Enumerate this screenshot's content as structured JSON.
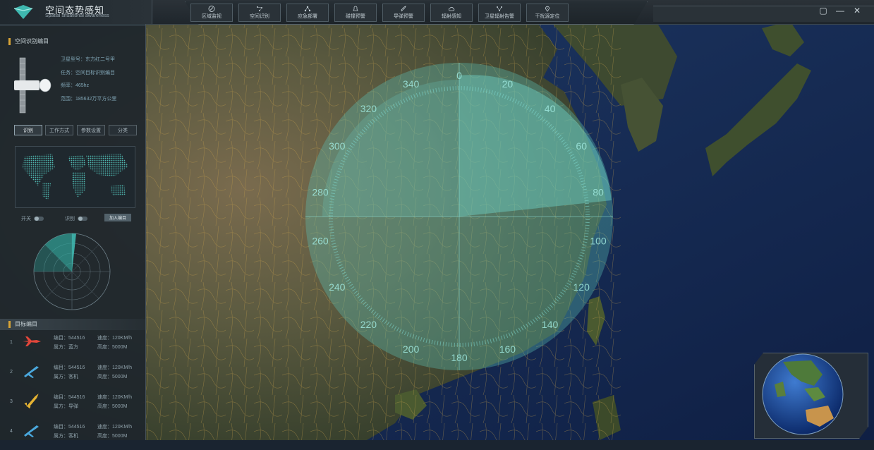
{
  "app": {
    "title": "空间态势感知",
    "subtitle": "Spatial situational awareness"
  },
  "nav": {
    "items": [
      {
        "label": "区域监视",
        "icon": "compass-icon"
      },
      {
        "label": "空间识别",
        "icon": "constellation-icon"
      },
      {
        "label": "应急部署",
        "icon": "network-icon"
      },
      {
        "label": "碰撞预警",
        "icon": "bell-icon"
      },
      {
        "label": "导弹预警",
        "icon": "rocket-icon"
      },
      {
        "label": "辐射感知",
        "icon": "cloud-icon"
      },
      {
        "label": "卫星辐射告警",
        "icon": "graph-icon"
      },
      {
        "label": "干扰源定位",
        "icon": "location-pin-icon"
      }
    ]
  },
  "window_controls": {
    "restore": "▢",
    "minimize": "—",
    "close": "✕"
  },
  "satellite_panel": {
    "title": "空间识别编目",
    "info": [
      {
        "label": "卫星型号：",
        "value": "东方红二号甲"
      },
      {
        "label": "任务：",
        "value": "空间目标识别编目"
      },
      {
        "label": "频率：",
        "value": "465hz"
      },
      {
        "label": "范围：",
        "value": "185632万平方公里"
      }
    ],
    "tabs": [
      "识别",
      "工作方式",
      "参数设置",
      "分类"
    ],
    "toggles": [
      {
        "label": "开关"
      },
      {
        "label": "识别"
      }
    ],
    "join_button": "加入编目"
  },
  "targets": {
    "title": "目标编目",
    "rows": [
      {
        "index": "1",
        "icon": "fighter-jet-icon",
        "icon_color": "#e2463a",
        "id_label": "编目：544516",
        "speed_label": "速度：120KM/h",
        "owner_label": "属方：蓝方",
        "height_label": "高度：5000M"
      },
      {
        "index": "2",
        "icon": "airplane-icon",
        "icon_color": "#4aa8dd",
        "id_label": "编目：544516",
        "speed_label": "速度：120KM/h",
        "owner_label": "属方：客机",
        "height_label": "高度：5000M"
      },
      {
        "index": "3",
        "icon": "rocket-icon",
        "icon_color": "#e5b232",
        "id_label": "编目：544516",
        "speed_label": "速度：120KM/h",
        "owner_label": "属方：导弹",
        "height_label": "高度：5000M"
      },
      {
        "index": "4",
        "icon": "airplane-icon",
        "icon_color": "#4aa8dd",
        "id_label": "编目：544516",
        "speed_label": "速度：120KM/h",
        "owner_label": "属方：客机",
        "height_label": "高度：5000M"
      }
    ]
  },
  "radar_overlay": {
    "ticks": [
      "340",
      "0",
      "20",
      "40",
      "60",
      "80",
      "100",
      "120",
      "140",
      "160",
      "180",
      "200",
      "220",
      "240",
      "260",
      "280",
      "300",
      "320"
    ]
  },
  "colors": {
    "accent_gold": "#d8a436",
    "radar_teal": "#6fd3c8",
    "panel_bg": "#1e262c"
  }
}
